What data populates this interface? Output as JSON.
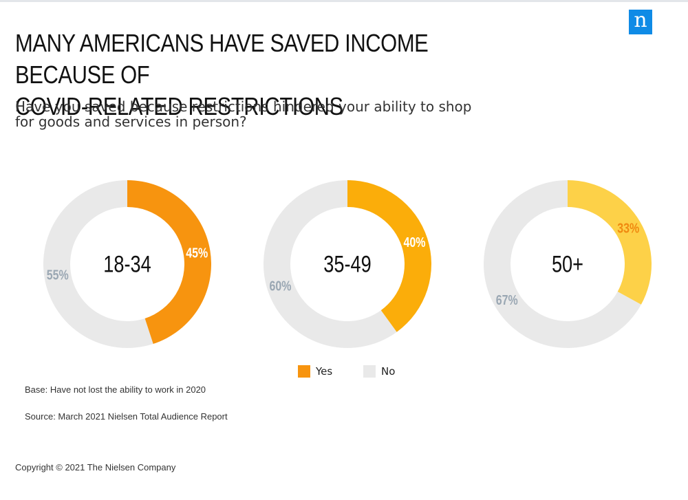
{
  "brand": {
    "logo_letter": "n",
    "logo_color": "#0f8be6"
  },
  "header": {
    "title_line1": "MANY AMERICANS HAVE SAVED INCOME BECAUSE OF",
    "title_line2": "COVID-RELATED RESTRICTIONS",
    "subtitle_line1": "Have you saved because restrictions hindered your ability to shop",
    "subtitle_line2": "for goods and services in person?"
  },
  "chart_data": {
    "type": "donut",
    "legend": [
      {
        "label": "Yes",
        "color": "#f7940f"
      },
      {
        "label": "No",
        "color": "#e9e9e9"
      }
    ],
    "charts": [
      {
        "center_label": "18-34",
        "yes": 45,
        "no": 55,
        "yes_label": "45%",
        "no_label": "55%",
        "yes_color": "#f7940f",
        "yes_label_color": "#ffffff"
      },
      {
        "center_label": "35-49",
        "yes": 40,
        "no": 60,
        "yes_label": "40%",
        "no_label": "60%",
        "yes_color": "#fbad0a",
        "yes_label_color": "#ffffff"
      },
      {
        "center_label": "50+",
        "yes": 33,
        "no": 67,
        "yes_label": "33%",
        "no_label": "67%",
        "yes_color": "#fdd148",
        "yes_label_color": "#f08a10"
      }
    ],
    "no_color": "#e9e9e9",
    "no_label_color": "#9aa7b3"
  },
  "footer": {
    "base": "Base: Have not lost the ability to work in 2020",
    "source": "Source: March 2021 Nielsen Total Audience Report",
    "copyright": "Copyright © 2021 The Nielsen Company"
  }
}
